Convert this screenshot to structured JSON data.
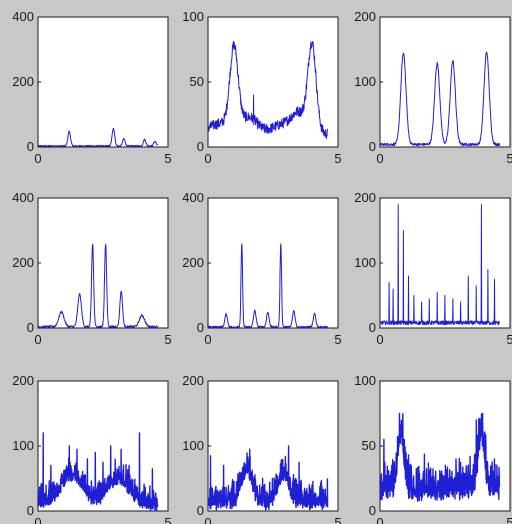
{
  "figure": {
    "background": "#c8c8c8",
    "line_color": "#1f1fd6"
  },
  "chart_data": [
    {
      "type": "line",
      "row": 1,
      "col": 1,
      "xlim": [
        0,
        5
      ],
      "ylim": [
        0,
        400
      ],
      "xticks": [
        "0",
        "5"
      ],
      "yticks": [
        "0",
        "200",
        "400"
      ],
      "grid": false,
      "baseline": 3,
      "noise": 2,
      "dense": false,
      "peaks": [
        [
          1.2,
          45,
          0.05
        ],
        [
          2.9,
          55,
          0.05
        ],
        [
          3.3,
          22,
          0.05
        ],
        [
          4.1,
          20,
          0.05
        ],
        [
          4.5,
          14,
          0.05
        ]
      ],
      "spikes": []
    },
    {
      "type": "line",
      "row": 1,
      "col": 2,
      "xlim": [
        0,
        5
      ],
      "ylim": [
        0,
        100
      ],
      "xticks": [
        "0",
        "5"
      ],
      "yticks": [
        "0",
        "50",
        "100"
      ],
      "grid": false,
      "baseline": 10,
      "noise": 4,
      "dense": false,
      "peaks": [
        [
          0.5,
          8,
          0.5
        ],
        [
          1.0,
          62,
          0.16
        ],
        [
          1.6,
          12,
          0.3
        ],
        [
          3.0,
          8,
          0.5
        ],
        [
          3.5,
          12,
          0.25
        ],
        [
          4.0,
          68,
          0.16
        ]
      ],
      "spikes": [
        [
          1.75,
          40
        ],
        [
          3.55,
          30
        ]
      ]
    },
    {
      "type": "line",
      "row": 1,
      "col": 3,
      "xlim": [
        0,
        5
      ],
      "ylim": [
        0,
        200
      ],
      "xticks": [
        "0",
        "5"
      ],
      "yticks": [
        "0",
        "100",
        "200"
      ],
      "grid": false,
      "baseline": 4,
      "noise": 2,
      "dense": false,
      "peaks": [
        [
          0.9,
          140,
          0.1
        ],
        [
          2.2,
          125,
          0.1
        ],
        [
          2.8,
          128,
          0.1
        ],
        [
          4.1,
          142,
          0.1
        ]
      ],
      "spikes": []
    },
    {
      "type": "line",
      "row": 2,
      "col": 1,
      "xlim": [
        0,
        5
      ],
      "ylim": [
        0,
        400
      ],
      "xticks": [
        "0",
        "5"
      ],
      "yticks": [
        "0",
        "200",
        "400"
      ],
      "grid": false,
      "baseline": 4,
      "noise": 3,
      "dense": false,
      "peaks": [
        [
          0.9,
          45,
          0.1
        ],
        [
          1.6,
          100,
          0.07
        ],
        [
          2.1,
          255,
          0.04
        ],
        [
          2.6,
          255,
          0.04
        ],
        [
          3.2,
          110,
          0.05
        ],
        [
          4.0,
          35,
          0.1
        ]
      ],
      "spikes": []
    },
    {
      "type": "line",
      "row": 2,
      "col": 2,
      "xlim": [
        0,
        5
      ],
      "ylim": [
        0,
        400
      ],
      "xticks": [
        "0",
        "5"
      ],
      "yticks": [
        "0",
        "200",
        "400"
      ],
      "grid": false,
      "baseline": 3,
      "noise": 3,
      "dense": false,
      "peaks": [
        [
          0.7,
          40,
          0.05
        ],
        [
          1.3,
          255,
          0.03
        ],
        [
          1.8,
          50,
          0.05
        ],
        [
          2.3,
          45,
          0.05
        ],
        [
          2.8,
          255,
          0.03
        ],
        [
          3.3,
          50,
          0.05
        ],
        [
          4.1,
          40,
          0.05
        ]
      ],
      "spikes": []
    },
    {
      "type": "line",
      "row": 2,
      "col": 3,
      "xlim": [
        0,
        5
      ],
      "ylim": [
        0,
        200
      ],
      "xticks": [
        "0",
        "5"
      ],
      "yticks": [
        "0",
        "100",
        "200"
      ],
      "grid": false,
      "baseline": 8,
      "noise": 3,
      "dense": false,
      "peaks": [],
      "spikes": [
        [
          0.35,
          70
        ],
        [
          0.5,
          60
        ],
        [
          0.7,
          190
        ],
        [
          0.9,
          150
        ],
        [
          1.1,
          80
        ],
        [
          1.3,
          50
        ],
        [
          1.6,
          40
        ],
        [
          1.9,
          45
        ],
        [
          2.2,
          55
        ],
        [
          2.5,
          50
        ],
        [
          2.8,
          45
        ],
        [
          3.1,
          40
        ],
        [
          3.4,
          80
        ],
        [
          3.7,
          65
        ],
        [
          3.9,
          190
        ],
        [
          4.15,
          90
        ],
        [
          4.4,
          75
        ]
      ]
    },
    {
      "type": "line",
      "row": 3,
      "col": 1,
      "xlim": [
        0,
        5
      ],
      "ylim": [
        0,
        200
      ],
      "xticks": [
        "0",
        "5"
      ],
      "yticks": [
        "0",
        "100",
        "200"
      ],
      "grid": false,
      "baseline": 6,
      "noise": 6,
      "dense": true,
      "peaks": [
        [
          1.3,
          45,
          0.4
        ],
        [
          3.1,
          40,
          0.4
        ]
      ],
      "spikes": [
        [
          0.2,
          120
        ],
        [
          0.5,
          70
        ],
        [
          0.9,
          55
        ],
        [
          1.2,
          100
        ],
        [
          1.5,
          95
        ],
        [
          1.9,
          80
        ],
        [
          2.2,
          90
        ],
        [
          2.5,
          75
        ],
        [
          2.8,
          100
        ],
        [
          3.2,
          95
        ],
        [
          3.5,
          70
        ],
        [
          3.9,
          120
        ],
        [
          4.4,
          65
        ]
      ]
    },
    {
      "type": "line",
      "row": 3,
      "col": 2,
      "xlim": [
        0,
        5
      ],
      "ylim": [
        0,
        200
      ],
      "xticks": [
        "0",
        "5"
      ],
      "yticks": [
        "0",
        "100",
        "200"
      ],
      "grid": false,
      "baseline": 8,
      "noise": 7,
      "dense": true,
      "peaks": [
        [
          1.5,
          50,
          0.2
        ],
        [
          2.9,
          45,
          0.2
        ]
      ],
      "spikes": [
        [
          0.1,
          85
        ],
        [
          0.6,
          70
        ],
        [
          1.1,
          45
        ],
        [
          1.6,
          95
        ],
        [
          2.1,
          50
        ],
        [
          2.6,
          40
        ],
        [
          3.1,
          100
        ],
        [
          3.5,
          75
        ],
        [
          4.0,
          40
        ]
      ]
    },
    {
      "type": "line",
      "row": 3,
      "col": 3,
      "xlim": [
        0,
        5
      ],
      "ylim": [
        0,
        100
      ],
      "xticks": [
        "0",
        "5"
      ],
      "yticks": [
        "0",
        "50",
        "100"
      ],
      "grid": false,
      "baseline": 12,
      "noise": 5,
      "dense": true,
      "peaks": [
        [
          0.8,
          45,
          0.12
        ],
        [
          3.9,
          45,
          0.12
        ]
      ],
      "spikes": [
        [
          0.15,
          55
        ],
        [
          0.45,
          35
        ],
        [
          0.75,
          75
        ],
        [
          1.0,
          45
        ],
        [
          3.7,
          70
        ],
        [
          3.95,
          75
        ],
        [
          4.4,
          40
        ]
      ]
    }
  ]
}
